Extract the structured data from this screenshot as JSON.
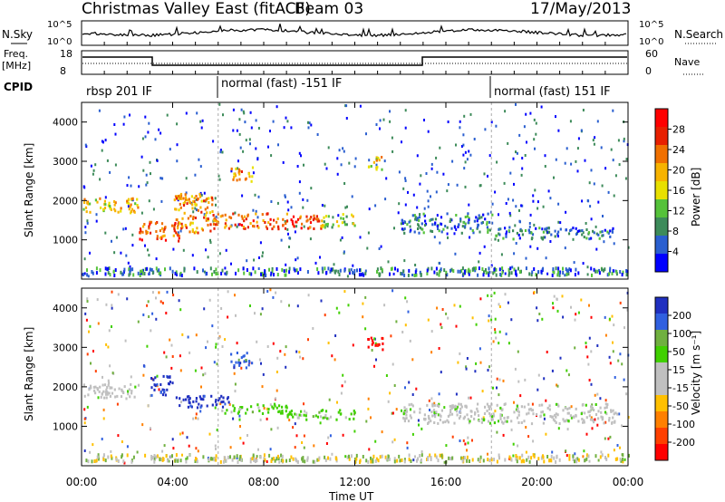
{
  "header": {
    "title": "Christmas Valley East (fitACF)",
    "beam": "Beam 03",
    "date": "17/May/2013"
  },
  "strip_labels": {
    "nsky": "N.Sky",
    "nsearch": "N.Search",
    "freq": "Freq.",
    "freq_unit": "[MHz]",
    "nave": "Nave",
    "cpid": "CPID"
  },
  "strip_ticks": {
    "noise_left": [
      "10^5",
      "10^0"
    ],
    "noise_right": [
      "10^5",
      "10^0"
    ],
    "freq_left": [
      "18",
      "8"
    ],
    "nave_right": [
      "60",
      "0"
    ]
  },
  "cpid_segments": [
    {
      "label": "rbsp 201 IF",
      "start_h": 0
    },
    {
      "label": "normal (fast) -151 IF",
      "start_h": 6
    },
    {
      "label": "normal (fast) 151 IF",
      "start_h": 18
    }
  ],
  "colors": {
    "power": [
      "#0000ff",
      "#2a5fd0",
      "#3d8b5a",
      "#55c23a",
      "#e8e000",
      "#f7b300",
      "#f07000",
      "#e82000",
      "#ff0000"
    ],
    "velocity": [
      "#2030c0",
      "#3060e0",
      "#70b040",
      "#40d000",
      "#c0c0c0",
      "#c0c0c0",
      "#ffc000",
      "#ff8000",
      "#ff4000",
      "#ff0000"
    ]
  },
  "chart_data": [
    {
      "type": "heatmap",
      "name": "power",
      "ylabel": "Slant Range [km]",
      "ylim": [
        0,
        4500
      ],
      "yticks": [
        "1000",
        "2000",
        "3000",
        "4000"
      ],
      "colorbar_label": "Power [dB]",
      "colorbar_ticks": [
        "4",
        "8",
        "12",
        "16",
        "20",
        "24",
        "28"
      ],
      "colorbar_range": [
        0,
        32
      ],
      "features": [
        {
          "t0": 0.0,
          "t1": 2.5,
          "r0": 1700,
          "r1": 2100,
          "level": 20
        },
        {
          "t0": 2.5,
          "t1": 4.3,
          "r0": 1000,
          "r1": 1500,
          "level": 26
        },
        {
          "t0": 4.0,
          "t1": 5.8,
          "r0": 1200,
          "r1": 2200,
          "level": 24
        },
        {
          "t0": 5.5,
          "t1": 10.5,
          "r0": 1300,
          "r1": 1700,
          "level": 28
        },
        {
          "t0": 6.5,
          "t1": 7.5,
          "r0": 2500,
          "r1": 2900,
          "level": 22
        },
        {
          "t0": 10.5,
          "t1": 12.0,
          "r0": 1350,
          "r1": 1700,
          "level": 16
        },
        {
          "t0": 12.5,
          "t1": 13.2,
          "r0": 2800,
          "r1": 3200,
          "level": 18
        },
        {
          "t0": 14.0,
          "t1": 18.0,
          "r0": 1200,
          "r1": 1700,
          "level": 10
        },
        {
          "t0": 18.0,
          "t1": 23.5,
          "r0": 1050,
          "r1": 1350,
          "level": 8
        }
      ]
    },
    {
      "type": "heatmap",
      "name": "velocity",
      "ylabel": "Slant Range [km]",
      "ylim": [
        0,
        4500
      ],
      "yticks": [
        "1000",
        "2000",
        "3000",
        "4000"
      ],
      "colorbar_label": "Velocity [m s⁻¹]",
      "colorbar_ticks": [
        "200",
        "100",
        "50",
        "15",
        "-15",
        "-50",
        "-100",
        "-200"
      ],
      "colorbar_range": [
        -250,
        250
      ],
      "features": [
        {
          "t0": 0.0,
          "t1": 2.5,
          "r0": 1700,
          "r1": 2100,
          "v": 0
        },
        {
          "t0": 3.0,
          "t1": 4.0,
          "r0": 1800,
          "r1": 2300,
          "v": 200
        },
        {
          "t0": 4.0,
          "t1": 6.5,
          "r0": 1500,
          "r1": 1800,
          "v": 200
        },
        {
          "t0": 6.0,
          "t1": 9.0,
          "r0": 1350,
          "r1": 1600,
          "v": 60
        },
        {
          "t0": 9.0,
          "t1": 12.0,
          "r0": 1200,
          "r1": 1450,
          "v": 40
        },
        {
          "t0": 6.5,
          "t1": 7.5,
          "r0": 2500,
          "r1": 2900,
          "v": 150
        },
        {
          "t0": 12.5,
          "t1": 13.2,
          "r0": 2900,
          "r1": 3300,
          "v": -220
        },
        {
          "t0": 14.0,
          "t1": 23.5,
          "r0": 1100,
          "r1": 1600,
          "v": 0
        }
      ]
    }
  ],
  "x_axis": {
    "label": "Time UT",
    "ticks": [
      "00:00",
      "04:00",
      "08:00",
      "12:00",
      "16:00",
      "20:00",
      "00:00"
    ],
    "range_h": [
      0,
      24
    ]
  }
}
